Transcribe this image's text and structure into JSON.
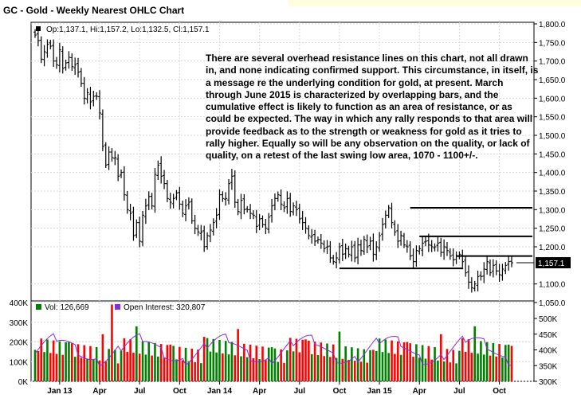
{
  "chart_data": [
    {
      "type": "ohlc",
      "title": "GC - Gold - Weekly Nearest OHLC Chart",
      "legend": {
        "open_label": "Op:1,137.1",
        "high_label": "Hi:1,157.2",
        "low_label": "Lo:1,132.5",
        "close_label": "Cl:1,157.1"
      },
      "last_price": "1,157.1",
      "y_ticks": [
        "1,800.0",
        "1,750.0",
        "1,700.0",
        "1,650.0",
        "1,600.0",
        "1,550.0",
        "1,500.0",
        "1,450.0",
        "1,400.0",
        "1,350.0",
        "1,300.0",
        "1,250.0",
        "1,200.0",
        "1,100.0",
        "1,050.0"
      ],
      "ylim": [
        1050,
        1800
      ],
      "x_ticks": [
        "Jan 13",
        "Apr",
        "Jul",
        "Oct",
        "Jan 14",
        "Apr",
        "Jul",
        "Oct",
        "Jan 15",
        "Apr",
        "Jul",
        "Oct"
      ],
      "annotation": "There are several overhead resistance lines on this chart, not all drawn in, and none indicating confirmed support.  This circumstance, in itself, is a message re the underlying condition for gold, at present. March through June 2015 is characterized by overlapping bars, and the cumulative effect is likely to function as an area of resistance, or as could be expected.  The way in which any rally responds to that area will provide feedback as to the strength or weakness for gold as it tries to rally higher.  Equally so will be any observation on the quality, or lack of quality, on a retest of the last swing low area, 1070 - 1100+/-.",
      "resistance_lines": [
        {
          "from_week": 122,
          "to_week": 162,
          "level": 1305
        },
        {
          "from_week": 125,
          "to_week": 162,
          "level": 1228
        },
        {
          "from_week": 137,
          "to_week": 162,
          "level": 1175
        },
        {
          "from_week": 99,
          "to_week": 133,
          "level": 1142
        }
      ],
      "close": [
        1770,
        1755,
        1705,
        1725,
        1745,
        1740,
        1700,
        1690,
        1730,
        1680,
        1695,
        1710,
        1685,
        1690,
        1670,
        1640,
        1600,
        1615,
        1590,
        1605,
        1605,
        1560,
        1470,
        1420,
        1455,
        1440,
        1440,
        1390,
        1400,
        1340,
        1300,
        1290,
        1230,
        1265,
        1215,
        1285,
        1310,
        1335,
        1310,
        1395,
        1420,
        1390,
        1370,
        1330,
        1320,
        1330,
        1345,
        1315,
        1290,
        1310,
        1320,
        1270,
        1250,
        1240,
        1240,
        1200,
        1230,
        1245,
        1265,
        1285,
        1340,
        1330,
        1330,
        1370,
        1390,
        1320,
        1295,
        1325,
        1300,
        1300,
        1290,
        1285,
        1255,
        1275,
        1260,
        1250,
        1280,
        1310,
        1330,
        1340,
        1315,
        1305,
        1330,
        1295,
        1310,
        1300,
        1275,
        1265,
        1250,
        1230,
        1230,
        1215,
        1220,
        1210,
        1195,
        1200,
        1170,
        1160,
        1170,
        1200,
        1180,
        1195,
        1180,
        1200,
        1170,
        1205,
        1190,
        1220,
        1200,
        1215,
        1180,
        1200,
        1230,
        1260,
        1285,
        1305,
        1265,
        1240,
        1215,
        1230,
        1205,
        1200,
        1175,
        1160,
        1190,
        1195,
        1210,
        1215,
        1205,
        1200,
        1200,
        1210,
        1185,
        1200,
        1190,
        1175,
        1165,
        1175,
        1180,
        1160,
        1130,
        1105,
        1090,
        1100,
        1120,
        1120,
        1140,
        1160,
        1130,
        1150,
        1135,
        1125,
        1140,
        1150,
        1160,
        1157
      ]
    },
    {
      "type": "bar+line",
      "legend": {
        "volume_label": "Vol: 126,669",
        "oi_label": "Open Interest: 320,807"
      },
      "left_ticks": [
        "400K",
        "300K",
        "200K",
        "100K",
        "0K"
      ],
      "left_lim": [
        0,
        400000
      ],
      "right_ticks": [
        "500K",
        "450K",
        "400K",
        "350K",
        "300K"
      ],
      "right_lim": [
        300000,
        500000
      ],
      "series_colors": {
        "up": "#008000",
        "down": "#ff0000",
        "open_interest": "#8a2be2"
      }
    }
  ]
}
